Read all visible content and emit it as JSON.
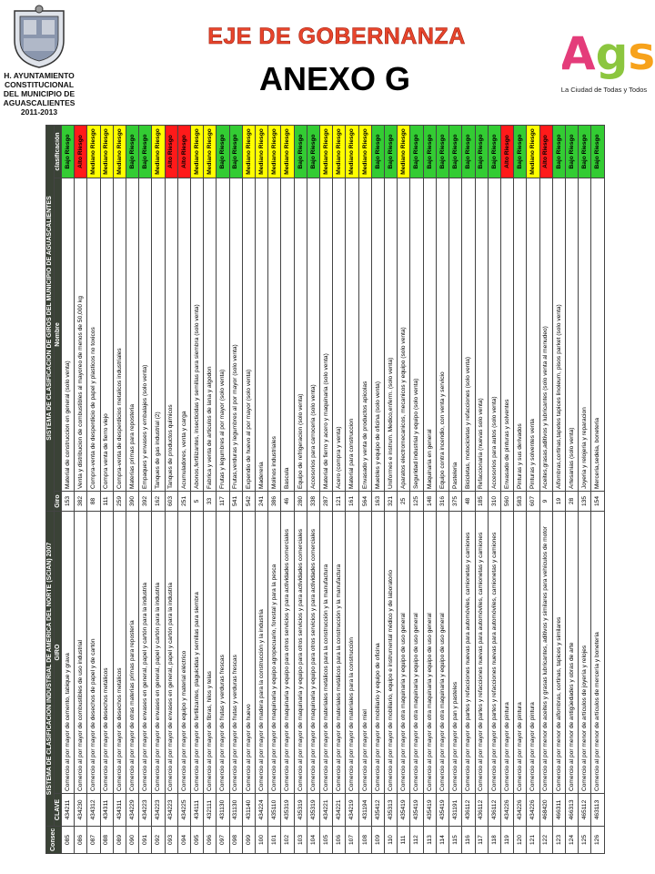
{
  "header": {
    "org_lines": [
      "H. AYUNTAMIENTO",
      "CONSTITUCIONAL",
      "DEL MUNICIPIO DE",
      "AGUASCALIENTES",
      "2011-2013"
    ],
    "title": "EJE DE GOBERNANZA",
    "subtitle": "ANEXO G",
    "brand": "Ags",
    "tagline": "La Ciudad de Todas y Todos"
  },
  "table": {
    "group_headers": [
      "Consec",
      "SISTEMA DE CLASIFICACIÓN INDUSTRIAL DE AMÉRICA DEL NORTE (SCIAN) 2007",
      "SISTEMA DE CLASIFICACIÓN DE GIROS DEL MUNICIPIO DE AGUASCALIENTES"
    ],
    "columns": [
      "CLAVE",
      "GIRO",
      "Giro",
      "Nombre",
      "clasificación"
    ],
    "class_colors": {
      "Bajo Riesgo": "#33cc33",
      "Mediano Riesgo": "#ffff00",
      "Alto Riesgo": "#ff1a1a"
    },
    "rows": [
      [
        "085",
        "434211",
        "Comercio al por mayor de cemento, tabique y grava",
        "153",
        "Material de construccion en general (solo venta)",
        "Bajo Riesgo"
      ],
      [
        "086",
        "434230",
        "Comercio al por mayor de combustibles de uso industrial",
        "382",
        "Venta y distribucion de combustibles al mayoreo de menos de 50,000 kg",
        "Alto Riesgo"
      ],
      [
        "087",
        "434312",
        "Comercio al por mayor de desechos de papel y de cartón",
        "88",
        "Compra-venta de desperdicio de papel y plasticos no toxicos",
        "Mediano Riesgo"
      ],
      [
        "088",
        "434311",
        "Comercio al por mayor de desechos metálicos",
        "111",
        "Compra venta de fierro viejo",
        "Mediano Riesgo"
      ],
      [
        "089",
        "434311",
        "Comercio al por mayor de desechos metálicos",
        "259",
        "Compra-venta de desperdicios metalicos industriales",
        "Mediano Riesgo"
      ],
      [
        "090",
        "434229",
        "Comercio al por mayor de otras materias primas para repostería",
        "390",
        "Materias primas para reposteria",
        "Bajo Riesgo"
      ],
      [
        "091",
        "434223",
        "Comercio al por mayor de envases en general, papel y cartón para la industria",
        "392",
        "Empaques y envases y embalajes (solo venta)",
        "Bajo Riesgo"
      ],
      [
        "092",
        "434223",
        "Comercio al por mayor de envases en general, papel y cartón para la industria",
        "162",
        "Tanques de gas industrial (2)",
        "Mediano Riesgo"
      ],
      [
        "093",
        "434223",
        "Comercio al por mayor de envases en general, papel y cartón para la industria",
        "603",
        "Tanques de productos quimicos",
        "Alto Riesgo"
      ],
      [
        "094",
        "434225",
        "Comercio al por mayor de equipo y material eléctrico",
        "251",
        "Acumuladores, venta y carga",
        "Alto Riesgo"
      ],
      [
        "095",
        "434111",
        "Comercio al por mayor de fertilizantes, plaguicidas y semillas para siembra",
        "5",
        "Abonos,fertilizantes, insecticidas y semillas para siembra (solo venta)",
        "Mediano Riesgo"
      ],
      [
        "096",
        "432111",
        "Comercio al por mayor de fibras, hilos y telas",
        "33",
        "Fabrica y venta de articulos de lana y algodon",
        "Mediano Riesgo"
      ],
      [
        "097",
        "431130",
        "Comercio al por mayor de frutas y verduras frescas",
        "117",
        "Frutas y legumbres al por mayor (solo venta)",
        "Bajo Riesgo"
      ],
      [
        "098",
        "431130",
        "Comercio al por mayor de frutas y verduras frescas",
        "541",
        "Frutas,verduras y legumbres al por mayor (solo venta)",
        "Bajo Riesgo"
      ],
      [
        "099",
        "431140",
        "Comercio al por mayor de huevo",
        "542",
        "Expendio de huevo al por mayor (solo venta)",
        "Mediano Riesgo"
      ],
      [
        "100",
        "434224",
        "Comercio al por mayor de madera para la construcción y la industria",
        "241",
        "Madereria",
        "Mediano Riesgo"
      ],
      [
        "101",
        "435110",
        "Comercio al por mayor de maquinaria y equipo agropecuario, forestal y para la pesca",
        "386",
        "Molinos industriales",
        "Mediano Riesgo"
      ],
      [
        "102",
        "435319",
        "Comercio al por mayor de maquinaria y equipo para otros servicios y para actividades comerciales",
        "46",
        "Bascula",
        "Mediano Riesgo"
      ],
      [
        "103",
        "435319",
        "Comercio al por mayor de maquinaria y equipo para otros servicios y para actividades comerciales",
        "280",
        "Equipo de refrigeracion (solo venta)",
        "Bajo Riesgo"
      ],
      [
        "104",
        "435319",
        "Comercio al por mayor de maquinaria y equipo para otros servicios y para actividades comerciales",
        "338",
        "Accesorios para carroceria (solo venta)",
        "Bajo Riesgo"
      ],
      [
        "105",
        "434221",
        "Comercio al por mayor de materiales metálicos para la construcción y la manufactura",
        "287",
        "Material de fierro y acero y maquinaria (solo venta)",
        "Mediano Riesgo"
      ],
      [
        "106",
        "434221",
        "Comercio al por mayor de materiales metálicos para la construcción y la manufactura",
        "121",
        "Acero (compra y venta)",
        "Mediano Riesgo"
      ],
      [
        "107",
        "434219",
        "Comercio al por mayor de materiales para la construcción",
        "161",
        "Material para construccion",
        "Mediano Riesgo"
      ],
      [
        "108",
        "431194",
        "Comercio al por mayor de miel",
        "564",
        "Envasado y venta de productos apicolas",
        "Mediano Riesgo"
      ],
      [
        "109",
        "435412",
        "Comercio al por mayor de mobiliario y equipo de oficina",
        "163",
        "Muebles y equipo de oficina (solo venta)",
        "Bajo Riesgo"
      ],
      [
        "110",
        "435313",
        "Comercio al por mayor de mobiliario, equipo e instrumental médico y de laboratorio",
        "321",
        "Uniformes e instrum. Medico,enferm. (solo venta)",
        "Bajo Riesgo"
      ],
      [
        "111",
        "435419",
        "Comercio al por mayor de otra maquinaria y equipo de uso general",
        "25",
        "Aparatos electromecanicos, mecanicos y equipo (solo venta)",
        "Mediano Riesgo"
      ],
      [
        "112",
        "435419",
        "Comercio al por mayor de otra maquinaria y equipo de uso general",
        "125",
        "Seguridad industrial y equipo (solo venta)",
        "Bajo Riesgo"
      ],
      [
        "113",
        "435419",
        "Comercio al por mayor de otra maquinaria y equipo de uso general",
        "148",
        "Maquinaria en general",
        "Bajo Riesgo"
      ],
      [
        "114",
        "435419",
        "Comercio al por mayor de otra maquinaria y equipo de uso general",
        "316",
        "Equipo contra incendio, con venta y servicio",
        "Bajo Riesgo"
      ],
      [
        "115",
        "431191",
        "Comercio al por mayor de pan y pasteles",
        "375",
        "Pasteleria",
        "Bajo Riesgo"
      ],
      [
        "116",
        "436112",
        "Comercio al por mayor de partes y refacciones nuevas para automóviles, camionetas y camiones",
        "48",
        "Bicicletas, motocicletas y refacciones (solo venta)",
        "Bajo Riesgo"
      ],
      [
        "117",
        "436112",
        "Comercio al por mayor de partes y refacciones nuevas para automóviles, camionetas y camiones",
        "185",
        "Refaccionaria (nuevas solo venta)",
        "Bajo Riesgo"
      ],
      [
        "118",
        "436112",
        "Comercio al por mayor de partes y refacciones nuevas para automóviles, camionetas y camiones",
        "310",
        "Accesorios para autos (solo venta)",
        "Bajo Riesgo"
      ],
      [
        "119",
        "434226",
        "Comercio al por mayor de pintura",
        "560",
        "Envasado de pinturas y solventes",
        "Alto Riesgo"
      ],
      [
        "120",
        "434226",
        "Comercio al por mayor de pintura",
        "583",
        "Pinturas y sus derivados",
        "Bajo Riesgo"
      ],
      [
        "121",
        "434226",
        "Comercio al por mayor de pintura",
        "607",
        "Pinturas y solventes venta",
        "Mediano Riesgo"
      ],
      [
        "122",
        "468420",
        "Comercio al por menor de aceites y grasas lubricantes, aditivos y similares para vehículos de motor",
        "9",
        "Aceites,grasas,aditivos y lubricantes (solo venta al menudeo)",
        "Alto Riesgo"
      ],
      [
        "123",
        "466311",
        "Comercio al por menor de alfombras, cortinas, tapices y similares",
        "19",
        "Alfombras,cortinas,tapetes tapices linoleum, pisos parket (solo venta)",
        "Bajo Riesgo"
      ],
      [
        "124",
        "466313",
        "Comercio al por menor de antigüedades y obras de arte",
        "28",
        "Artesanias (solo venta)",
        "Bajo Riesgo"
      ],
      [
        "125",
        "465112",
        "Comercio al por menor de artículos de joyería y relojes",
        "135",
        "Joyeria y relojeria y reparacion",
        "Bajo Riesgo"
      ],
      [
        "126",
        "463113",
        "Comercio al por menor de artículos de mercería y bonetería",
        "154",
        "Merceria,sedeia, boneteria",
        "Bajo Riesgo"
      ]
    ]
  }
}
